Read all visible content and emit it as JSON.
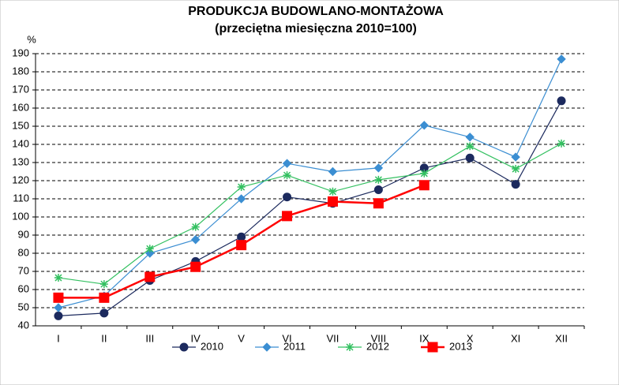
{
  "chart_data": {
    "type": "line",
    "title": "PRODUKCJA BUDOWLANO-MONTAŻOWA",
    "subtitle": "(przeciętna miesięczna 2010=100)",
    "y_label": "%",
    "categories": [
      "I",
      "II",
      "III",
      "IV",
      "V",
      "VI",
      "VII",
      "VIII",
      "IX",
      "X",
      "XI",
      "XII"
    ],
    "series": [
      {
        "name": "2010",
        "color": "#1c2a5e",
        "marker": "circle",
        "values": [
          45.5,
          47,
          65,
          75.5,
          89,
          111,
          107.5,
          115,
          127,
          132.5,
          118,
          164
        ]
      },
      {
        "name": "2011",
        "color": "#3b8ed2",
        "marker": "diamond",
        "values": [
          50,
          56.5,
          80,
          87.5,
          110,
          129.5,
          125,
          127,
          150.5,
          144,
          133,
          187
        ]
      },
      {
        "name": "2012",
        "color": "#33c060",
        "marker": "asterisk",
        "values": [
          66.5,
          63,
          82.5,
          94.5,
          116.5,
          123,
          114,
          120.5,
          124,
          139,
          126.5,
          140.5
        ]
      },
      {
        "name": "2013",
        "color": "#ff0000",
        "marker": "square",
        "values": [
          55.5,
          55.5,
          67,
          72.5,
          84.5,
          100.5,
          108.5,
          107.5,
          117.5,
          null,
          null,
          null
        ]
      }
    ],
    "ylim": [
      40,
      190
    ],
    "yticks": [
      40,
      50,
      60,
      70,
      80,
      90,
      100,
      110,
      120,
      130,
      140,
      150,
      160,
      170,
      180,
      190
    ],
    "grid": true
  }
}
